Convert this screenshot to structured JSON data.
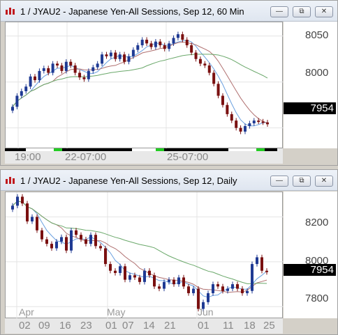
{
  "windows": [
    {
      "title": "1 / JYAU2 - Japanese Yen-All Sessions, Sep 12, 60 Min",
      "buttons": {
        "minimize": "—",
        "restore": "⧉",
        "close": "✕"
      },
      "y_ticks": [
        "8050",
        "8000",
        "7950"
      ],
      "last_price": "7954",
      "x_labels": [
        "19:00",
        "22-07:00",
        "25-07:00"
      ],
      "colors": {
        "up": "#1f3a93",
        "down": "#7a1010",
        "ma_fast": "#6aa0e0",
        "ma_mid": "#b07070",
        "ma_slow": "#6aa86a"
      }
    },
    {
      "title": "1 / JYAU2 - Japanese Yen-All Sessions, Sep 12, Daily",
      "buttons": {
        "minimize": "—",
        "restore": "⧉",
        "close": "✕"
      },
      "y_ticks": [
        "8200",
        "8000",
        "7800"
      ],
      "last_price": "7954",
      "month_labels": [
        "Apr",
        "May",
        "Jun"
      ],
      "x_labels": [
        "02",
        "09",
        "16",
        "23",
        "01",
        "07",
        "14",
        "21",
        "01",
        "11",
        "18",
        "25"
      ],
      "colors": {
        "up": "#1f3a93",
        "down": "#7a1010",
        "ma_fast": "#6aa0e0",
        "ma_mid": "#b07070",
        "ma_slow": "#6aa86a"
      }
    }
  ],
  "chart_data": [
    {
      "type": "candlestick",
      "title": "1 / JYAU2 - Japanese Yen-All Sessions, Sep 12, 60 Min",
      "y_ticks": [
        8050,
        8000,
        7950
      ],
      "ylim": [
        7927,
        8065
      ],
      "last": 7954,
      "closes": [
        7973,
        7985,
        7990,
        7995,
        8006,
        8002,
        8012,
        8015,
        8010,
        8020,
        8018,
        8012,
        8022,
        8018,
        8010,
        8005,
        8003,
        8012,
        8016,
        8020,
        8030,
        8028,
        8032,
        8025,
        8030,
        8022,
        8028,
        8035,
        8040,
        8046,
        8042,
        8038,
        8044,
        8040,
        8036,
        8042,
        8048,
        8052,
        8046,
        8040,
        8032,
        8025,
        8020,
        8018,
        8010,
        7998,
        7985,
        7975,
        7965,
        7958,
        7950,
        7946,
        7952,
        7955,
        7958,
        7957,
        7956,
        7954
      ]
    },
    {
      "type": "candlestick",
      "title": "1 / JYAU2 - Japanese Yen-All Sessions, Sep 12, Daily",
      "y_ticks": [
        8200,
        8000,
        7800
      ],
      "ylim": [
        7745,
        8310
      ],
      "last": 7954,
      "closes": [
        8250,
        8290,
        8260,
        8180,
        8200,
        8140,
        8100,
        8080,
        8060,
        8090,
        8110,
        8050,
        8140,
        8120,
        8100,
        8080,
        8120,
        8070,
        8060,
        7990,
        7960,
        7950,
        7980,
        7920,
        7940,
        7930,
        7910,
        7960,
        7940,
        7890,
        7880,
        7910,
        7920,
        7900,
        7930,
        7890,
        7860,
        7880,
        7790,
        7820,
        7860,
        7900,
        7890,
        7870,
        7880,
        7900,
        7880,
        7860,
        7870,
        7990,
        8020,
        7960,
        7954
      ]
    }
  ]
}
